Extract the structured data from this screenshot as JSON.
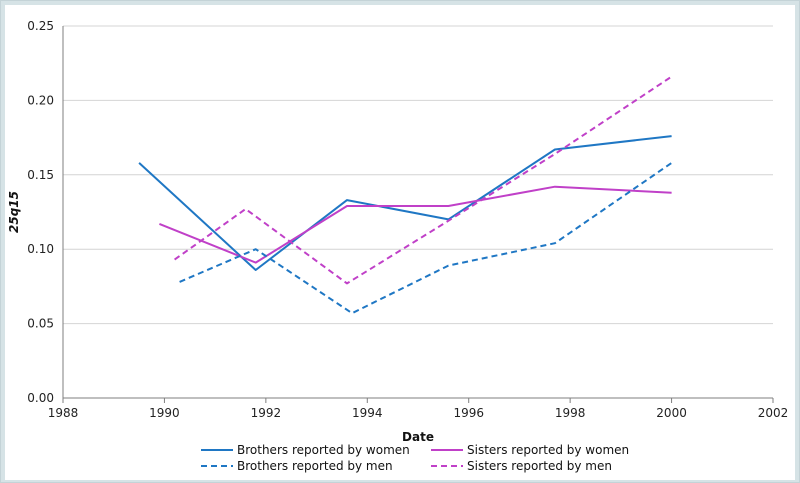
{
  "chart_data": {
    "type": "line",
    "title": "",
    "xlabel": "Date",
    "ylabel": "25q15",
    "xlim": [
      1988,
      2002
    ],
    "ylim": [
      0,
      0.25
    ],
    "xticks": [
      "1988",
      "1990",
      "1992",
      "1994",
      "1996",
      "1998",
      "2000",
      "2002"
    ],
    "yticks": [
      "0.00",
      "0.05",
      "0.10",
      "0.15",
      "0.20",
      "0.25"
    ],
    "grid": "horizontal",
    "legend_position": "bottom",
    "series": [
      {
        "name": "Brothers reported by women",
        "color": "#1f77c4",
        "style": "solid",
        "x": [
          1989.5,
          1991.8,
          1993.6,
          1995.6,
          1997.7,
          2000.0
        ],
        "y": [
          0.158,
          0.086,
          0.133,
          0.12,
          0.167,
          0.176
        ]
      },
      {
        "name": "Sisters reported by women",
        "color": "#c040c8",
        "style": "solid",
        "x": [
          1989.9,
          1991.8,
          1993.6,
          1995.6,
          1997.7,
          2000.0
        ],
        "y": [
          0.117,
          0.091,
          0.129,
          0.129,
          0.142,
          0.138
        ]
      },
      {
        "name": "Brothers reported by men",
        "color": "#1f77c4",
        "style": "dashed",
        "x": [
          1990.3,
          1991.8,
          1993.7,
          1995.6,
          1997.7,
          2000.0
        ],
        "y": [
          0.078,
          0.1,
          0.057,
          0.089,
          0.104,
          0.158
        ]
      },
      {
        "name": "Sisters reported by men",
        "color": "#c040c8",
        "style": "dashed",
        "x": [
          1990.2,
          1991.6,
          1993.6,
          1995.5,
          1997.7,
          2000.0
        ],
        "y": [
          0.093,
          0.127,
          0.077,
          0.117,
          0.164,
          0.216
        ]
      }
    ]
  }
}
